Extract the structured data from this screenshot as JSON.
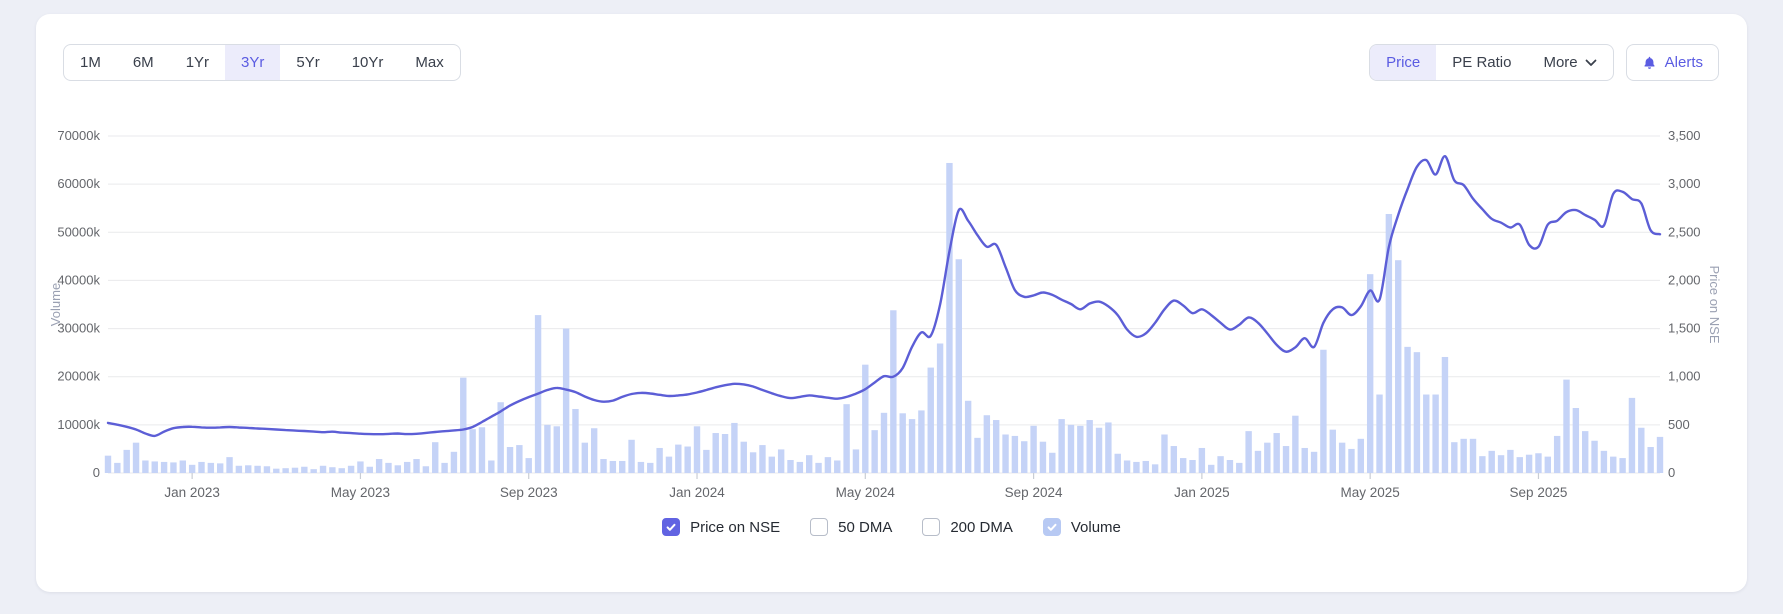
{
  "toolbar": {
    "range_buttons": [
      {
        "label": "1M",
        "active": false
      },
      {
        "label": "6M",
        "active": false
      },
      {
        "label": "1Yr",
        "active": false
      },
      {
        "label": "3Yr",
        "active": true
      },
      {
        "label": "5Yr",
        "active": false
      },
      {
        "label": "10Yr",
        "active": false
      },
      {
        "label": "Max",
        "active": false
      }
    ],
    "metric_buttons": [
      {
        "label": "Price",
        "active": true
      },
      {
        "label": "PE Ratio",
        "active": false
      },
      {
        "label": "More",
        "active": false,
        "has_chevron": true
      }
    ],
    "alerts_label": "Alerts"
  },
  "legend": [
    {
      "label": "Price on NSE",
      "checked": true,
      "checkbox_color": "#6163e2"
    },
    {
      "label": "50 DMA",
      "checked": false,
      "checkbox_color": "#ffffff"
    },
    {
      "label": "200 DMA",
      "checked": false,
      "checkbox_color": "#ffffff"
    },
    {
      "label": "Volume",
      "checked": true,
      "checkbox_color": "#b7c9f3"
    }
  ],
  "chart_data": {
    "type": "line+bar",
    "x_range": [
      "Nov 2022",
      "Nov 2025"
    ],
    "x_tick_positions": [
      9,
      27,
      45,
      63,
      81,
      99,
      117,
      135,
      153
    ],
    "x_tick_labels": [
      "Jan 2023",
      "May 2023",
      "Sep 2023",
      "Jan 2024",
      "May 2024",
      "Sep 2024",
      "Jan 2025",
      "May 2025",
      "Sep 2025"
    ],
    "left_axis": {
      "title": "Volume",
      "min": 0,
      "max": 70000,
      "step": 10000,
      "unit": "k",
      "tick_labels": [
        "70000k",
        "60000k",
        "50000k",
        "40000k",
        "30000k",
        "20000k",
        "10000k",
        "0"
      ]
    },
    "right_axis": {
      "title": "Price on NSE",
      "min": 0,
      "max": 3500,
      "step": 500,
      "tick_labels": [
        "3,500",
        "3,000",
        "2,500",
        "2,000",
        "1,500",
        "1,000",
        "500",
        "0"
      ]
    },
    "grid": "horizontal",
    "colors": {
      "price_line": "#5c5ed6",
      "volume_bar": "#c5d3f7",
      "gridline": "#e9eaec",
      "axis_label": "#64666b",
      "axis_title": "#9aa0b2",
      "tick_mark": "#c9cdd4"
    },
    "series": [
      {
        "name": "Price on NSE",
        "type": "line",
        "axis": "right",
        "values": [
          520,
          502,
          480,
          452,
          410,
          385,
          430,
          465,
          478,
          480,
          474,
          470,
          474,
          478,
          473,
          468,
          462,
          458,
          452,
          446,
          440,
          436,
          430,
          424,
          429,
          420,
          414,
          408,
          404,
          403,
          406,
          410,
          404,
          407,
          416,
          426,
          434,
          442,
          452,
          478,
          530,
          585,
          640,
          700,
          748,
          788,
          825,
          862,
          884,
          866,
          840,
          795,
          758,
          740,
          752,
          790,
          820,
          832,
          826,
          812,
          800,
          806,
          816,
          836,
          862,
          890,
          912,
          926,
          920,
          898,
          862,
          828,
          798,
          778,
          790,
          806,
          795,
          782,
          772,
          790,
          825,
          870,
          940,
          1005,
          1000,
          1090,
          1310,
          1460,
          1425,
          1750,
          2300,
          2730,
          2620,
          2470,
          2350,
          2370,
          2140,
          1900,
          1830,
          1845,
          1875,
          1850,
          1800,
          1755,
          1700,
          1760,
          1780,
          1730,
          1640,
          1490,
          1415,
          1450,
          1560,
          1700,
          1790,
          1740,
          1660,
          1700,
          1640,
          1560,
          1490,
          1540,
          1615,
          1560,
          1450,
          1330,
          1260,
          1305,
          1400,
          1310,
          1560,
          1700,
          1720,
          1640,
          1730,
          1895,
          1800,
          2350,
          2680,
          2950,
          3180,
          3250,
          3100,
          3290,
          3040,
          2990,
          2850,
          2740,
          2640,
          2600,
          2550,
          2580,
          2370,
          2350,
          2580,
          2620,
          2710,
          2730,
          2680,
          2630,
          2570,
          2900,
          2920,
          2845,
          2800,
          2520,
          2480
        ]
      },
      {
        "name": "Volume",
        "type": "bar",
        "axis": "left",
        "unit": "k",
        "values": [
          3600,
          2100,
          4800,
          6300,
          2600,
          2400,
          2300,
          2200,
          2600,
          1700,
          2300,
          2100,
          2000,
          3300,
          1500,
          1600,
          1500,
          1400,
          900,
          1000,
          1100,
          1300,
          800,
          1500,
          1200,
          1000,
          1500,
          2400,
          1300,
          2900,
          2100,
          1600,
          2300,
          2900,
          1400,
          6400,
          2100,
          4400,
          19800,
          9100,
          9500,
          2600,
          14700,
          5400,
          5800,
          3100,
          32800,
          10000,
          9700,
          30000,
          13300,
          6300,
          9300,
          2900,
          2500,
          2500,
          6900,
          2300,
          2100,
          5200,
          3400,
          5900,
          5500,
          9700,
          4800,
          8300,
          8100,
          10400,
          6500,
          4300,
          5800,
          3400,
          4900,
          2700,
          2300,
          3700,
          2100,
          3300,
          2600,
          14300,
          4900,
          22500,
          8900,
          12500,
          33800,
          12400,
          11200,
          13000,
          21900,
          26900,
          64400,
          44400,
          15000,
          7300,
          12000,
          11000,
          8000,
          7700,
          6600,
          9800,
          6500,
          4200,
          11200,
          10000,
          9800,
          11000,
          9400,
          10500,
          4000,
          2600,
          2300,
          2500,
          1800,
          8000,
          5600,
          3100,
          2700,
          5200,
          1700,
          3500,
          2700,
          2100,
          8700,
          4600,
          6300,
          8300,
          5600,
          11900,
          5200,
          4400,
          25600,
          9000,
          6300,
          5000,
          7100,
          41300,
          16300,
          53800,
          44200,
          26200,
          25100,
          16300,
          16300,
          24100,
          6400,
          7100,
          7100,
          3500,
          4600,
          3700,
          4800,
          3300,
          3800,
          4100,
          3400,
          7700,
          19400,
          13500,
          8700,
          6700,
          4600,
          3400,
          3100,
          15600,
          9400,
          5400,
          7500
        ]
      }
    ]
  }
}
